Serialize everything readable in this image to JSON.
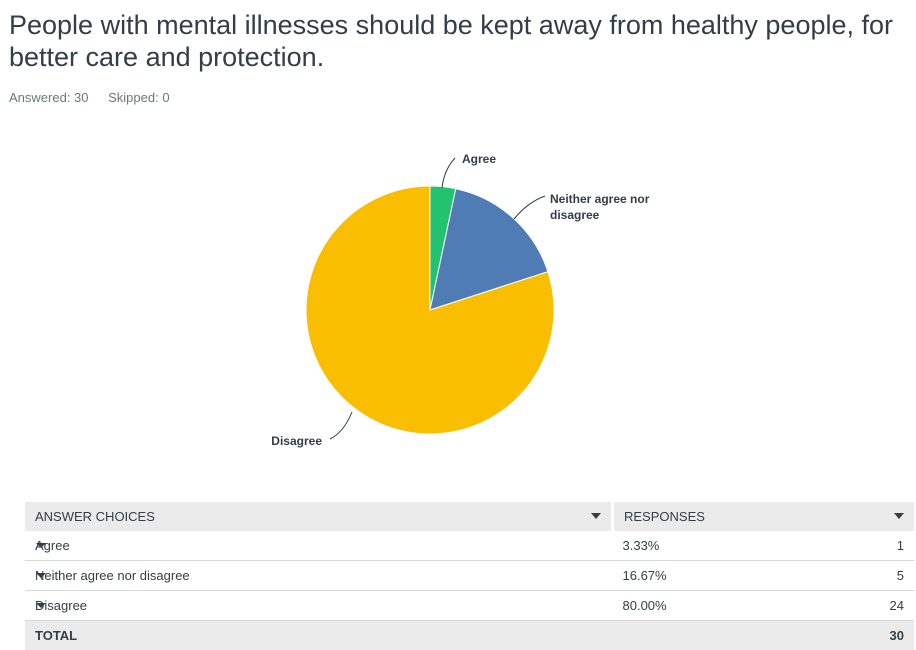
{
  "question": {
    "title": "People with mental illnesses should be kept away from healthy people, for better care and protection."
  },
  "stats": {
    "answered": "Answered: 30",
    "skipped": "Skipped: 0"
  },
  "chart_data": {
    "type": "pie",
    "title": "",
    "categories": [
      "Agree",
      "Neither agree nor disagree",
      "Disagree"
    ],
    "values": [
      3.33,
      16.67,
      80.0
    ],
    "colors": [
      "#22c26e",
      "#507cb6",
      "#f9be00"
    ],
    "label_lines": [
      [
        "Agree"
      ],
      [
        "Neither agree nor",
        "disagree"
      ],
      [
        "Disagree"
      ]
    ]
  },
  "table": {
    "headers": {
      "choices": "ANSWER CHOICES",
      "responses": "RESPONSES"
    },
    "rows": [
      {
        "choice": "Agree",
        "percent": "3.33%",
        "count": "1"
      },
      {
        "choice": "Neither agree nor disagree",
        "percent": "16.67%",
        "count": "5"
      },
      {
        "choice": "Disagree",
        "percent": "80.00%",
        "count": "24"
      }
    ],
    "total": {
      "label": "TOTAL",
      "count": "30"
    }
  }
}
